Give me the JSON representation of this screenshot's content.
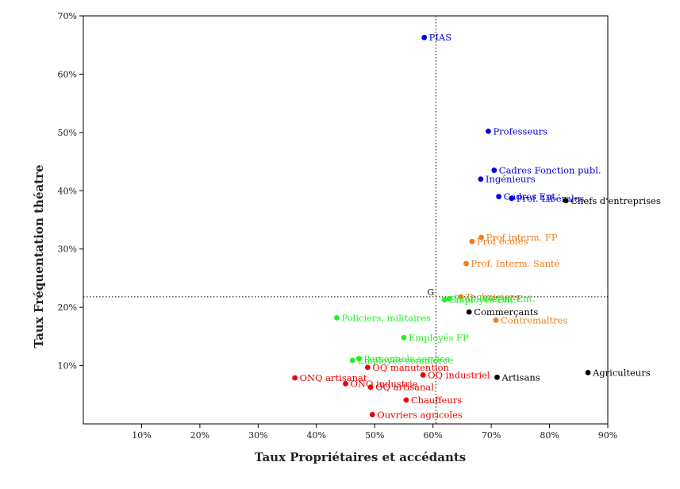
{
  "chart_data": {
    "type": "scatter",
    "title": "",
    "xlabel": "Taux Propriétaires et accédants",
    "ylabel": "Taux Fréquentation théatre",
    "xlim": [
      0,
      90
    ],
    "ylim": [
      0,
      70
    ],
    "x_ticks": [
      10,
      20,
      30,
      40,
      50,
      60,
      70,
      80,
      90
    ],
    "x_tick_labels": [
      "10%",
      "20%",
      "30%",
      "40%",
      "50%",
      "60%",
      "70%",
      "80%",
      "90%"
    ],
    "y_ticks": [
      10,
      20,
      30,
      40,
      50,
      60,
      70
    ],
    "y_tick_labels": [
      "10%",
      "20%",
      "30%",
      "40%",
      "50%",
      "60%",
      "70%"
    ],
    "grid": false,
    "reference_lines": {
      "x": 60.5,
      "y": 21.8,
      "label": "G"
    },
    "colors": {
      "blue": "#0000dd",
      "orange": "#f07d1e",
      "green": "#22ee22",
      "red": "#ee0000",
      "black": "#000000"
    },
    "points": [
      {
        "label": "PIAS",
        "x": 58.5,
        "y": 66.3,
        "color": "blue"
      },
      {
        "label": "Professeurs",
        "x": 69.5,
        "y": 50.2,
        "color": "blue"
      },
      {
        "label": "Cadres Fonction publ.",
        "x": 70.5,
        "y": 43.5,
        "color": "blue"
      },
      {
        "label": "Ingénieurs",
        "x": 68.2,
        "y": 42.0,
        "color": "blue"
      },
      {
        "label": "Cadres Ent.",
        "x": 71.3,
        "y": 39.0,
        "color": "blue"
      },
      {
        "label": "Prof. Libérales",
        "x": 73.5,
        "y": 38.7,
        "color": "blue"
      },
      {
        "label": "Chefs d'entreprises",
        "x": 82.8,
        "y": 38.3,
        "color": "black"
      },
      {
        "label": "Prof interm. FP",
        "x": 68.3,
        "y": 32.0,
        "color": "orange"
      },
      {
        "label": "Prof écoles",
        "x": 66.7,
        "y": 31.3,
        "color": "orange"
      },
      {
        "label": "Prof. Interm. Santé",
        "x": 65.7,
        "y": 27.5,
        "color": "orange"
      },
      {
        "label": "Techniciens",
        "x": 64.8,
        "y": 21.8,
        "color": "orange"
      },
      {
        "label": "Employés Ent.",
        "x": 62.0,
        "y": 21.3,
        "color": "green"
      },
      {
        "label": "Prof. Interm. Ent.",
        "x": 62.8,
        "y": 21.5,
        "color": "green"
      },
      {
        "label": "Commerçants",
        "x": 66.2,
        "y": 19.2,
        "color": "black"
      },
      {
        "label": "Contremaîtres",
        "x": 70.8,
        "y": 17.8,
        "color": "orange"
      },
      {
        "label": "Policiers. militaires",
        "x": 43.5,
        "y": 18.2,
        "color": "green"
      },
      {
        "label": "Employés FP",
        "x": 55.0,
        "y": 14.8,
        "color": "green"
      },
      {
        "label": "Personnels service",
        "x": 47.3,
        "y": 11.2,
        "color": "green"
      },
      {
        "label": "Employés commerce",
        "x": 46.2,
        "y": 10.9,
        "color": "green"
      },
      {
        "label": "OQ manutention",
        "x": 48.8,
        "y": 9.7,
        "color": "red"
      },
      {
        "label": "OQ industriel",
        "x": 58.3,
        "y": 8.4,
        "color": "red"
      },
      {
        "label": "Artisans",
        "x": 71.0,
        "y": 8.0,
        "color": "black"
      },
      {
        "label": "Agriculteurs",
        "x": 86.6,
        "y": 8.8,
        "color": "black"
      },
      {
        "label": "ONQ artisanat",
        "x": 36.3,
        "y": 7.9,
        "color": "red"
      },
      {
        "label": "ONQ industrie",
        "x": 45.0,
        "y": 6.9,
        "color": "red"
      },
      {
        "label": "OQ artisanal",
        "x": 49.3,
        "y": 6.3,
        "color": "red"
      },
      {
        "label": "Chauffeurs",
        "x": 55.4,
        "y": 4.1,
        "color": "red"
      },
      {
        "label": "Ouvriers agricoles",
        "x": 49.6,
        "y": 1.6,
        "color": "red"
      }
    ]
  }
}
